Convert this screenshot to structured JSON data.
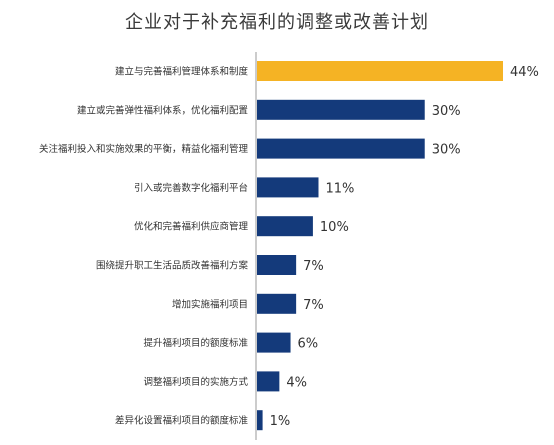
{
  "chart_data": {
    "type": "bar",
    "orientation": "horizontal",
    "title": "企业对于补充福利的调整或改善计划",
    "categories": [
      "建立与完善福利管理体系和制度",
      "建立或完善弹性福利体系，优化福利配置",
      "关注福利投入和实施效果的平衡，精益化福利管理",
      "引入或完善数字化福利平台",
      "优化和完善福利供应商管理",
      "围绕提升职工生活品质改善福利方案",
      "增加实施福利项目",
      "提升福利项目的额度标准",
      "调整福利项目的实施方式",
      "差异化设置福利项目的额度标准"
    ],
    "values": [
      44,
      30,
      30,
      11,
      10,
      7,
      7,
      6,
      4,
      1
    ],
    "value_labels": [
      "44%",
      "30%",
      "30%",
      "11%",
      "10%",
      "7%",
      "7%",
      "6%",
      "4%",
      "1%"
    ],
    "unit": "%",
    "xlim": [
      0,
      44
    ],
    "grid": false,
    "legend": "none",
    "colors": {
      "highlight": "#F5B324",
      "default": "#143A7B",
      "axis": "#9a9a9a",
      "label": "#333333",
      "value_label": "#333333"
    }
  }
}
